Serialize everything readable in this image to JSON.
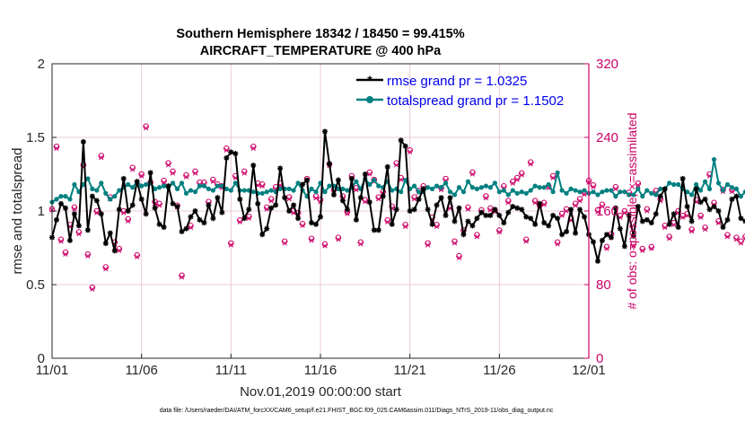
{
  "chart_data": {
    "type": "line",
    "title": [
      "Southern Hemisphere 18342 / 18450 = 99.415%",
      "AIRCRAFT_TEMPERATURE @ 400 hPa"
    ],
    "xlabel": "Nov.01,2019 00:00:00 start",
    "ylabel_left": "rmse and totalspread",
    "ylabel_right": "# of obs: o=possible; ×=assimilated",
    "xlim": [
      0,
      30
    ],
    "ylim_left": [
      0,
      2
    ],
    "ylim_right": [
      0,
      320
    ],
    "x_ticks": [
      0,
      5,
      10,
      15,
      20,
      25,
      30
    ],
    "x_tick_labels": [
      "11/01",
      "11/06",
      "11/11",
      "11/16",
      "11/21",
      "11/26",
      "12/01"
    ],
    "y_ticks_left": [
      0,
      0.5,
      1,
      1.5,
      2
    ],
    "y_tick_labels_left": [
      "0",
      "0.5",
      "1",
      "1.5",
      "2"
    ],
    "y_ticks_right": [
      0,
      80,
      160,
      240,
      320
    ],
    "y_tick_labels_right": [
      "0",
      "80",
      "160",
      "240",
      "320"
    ],
    "legend": [
      "rmse grand pr = 1.0325",
      "totalspread grand pr = 1.1502"
    ],
    "footnote": "data file: /Users/raeder/DAI/ATM_forcXX/CAM6_setup/f.e21.FHIST_BGC.f09_025.CAM6assim.011/Diags_NTrS_2019-11/obs_diag_output.nc",
    "colors": {
      "rmse": "#000000",
      "spread": "#008080",
      "obs": "#cc0066",
      "grid": "#e8c8dc"
    },
    "step_days": 0.25,
    "series": [
      {
        "name": "rmse",
        "axis": "left",
        "values": [
          0.82,
          0.94,
          1.05,
          1.02,
          0.8,
          0.98,
          0.9,
          1.47,
          0.87,
          1.1,
          1.07,
          0.98,
          0.78,
          0.85,
          0.73,
          1.01,
          1.22,
          1.0,
          1.04,
          1.2,
          1.08,
          0.98,
          1.26,
          1.02,
          0.91,
          0.89,
          1.17,
          1.05,
          1.03,
          0.86,
          0.88,
          0.96,
          1.0,
          0.94,
          0.92,
          1.04,
          0.95,
          1.09,
          0.99,
          1.36,
          1.4,
          1.39,
          1.08,
          0.95,
          1.01,
          1.31,
          1.05,
          0.84,
          0.88,
          1.02,
          1.04,
          1.29,
          1.09,
          1.0,
          1.04,
          0.95,
          1.18,
          1.21,
          0.92,
          0.91,
          0.96,
          1.54,
          1.32,
          1.11,
          1.21,
          1.07,
          1.01,
          1.22,
          0.94,
          1.09,
          1.25,
          1.06,
          0.87,
          0.87,
          1.1,
          1.3,
          0.91,
          1.01,
          1.48,
          1.44,
          1.0,
          1.01,
          1.08,
          1.15,
          1.01,
          0.91,
          1.04,
          1.09,
          0.97,
          1.09,
          0.93,
          1.02,
          0.84,
          0.93,
          0.9,
          0.95,
          0.99,
          0.97,
          0.97,
          1.01,
          0.97,
          0.92,
          0.99,
          1.03,
          1.02,
          1.01,
          0.96,
          0.95,
          0.91,
          1.05,
          0.92,
          0.9,
          0.97,
          0.95,
          0.84,
          0.86,
          1.01,
          0.85,
          1.01,
          0.96,
          0.84,
          0.79,
          0.66,
          0.8,
          0.84,
          0.82,
          1.02,
          0.88,
          0.76,
          0.97,
          0.83,
          1.03,
          0.93,
          0.94,
          0.92,
          0.98,
          1.1,
          1.15,
          0.91,
          0.98,
          0.89,
          1.22,
          1.03,
          0.93,
          1.15,
          1.06,
          1.08,
          1.01,
          1.03,
          1.0,
          0.89,
          0.94,
          1.08,
          1.1,
          0.95,
          0.93,
          1.1,
          0.94,
          0.83,
          0.94,
          1.05,
          0.89,
          0.94,
          1.03,
          0.86,
          0.81,
          0.82,
          0.93,
          0.81,
          0.83,
          0.86,
          0.98,
          0.88,
          0.93,
          1.34,
          1.32
        ]
      },
      {
        "name": "totalspread",
        "axis": "left",
        "values": [
          1.06,
          1.08,
          1.1,
          1.1,
          1.08,
          1.18,
          1.13,
          1.18,
          1.22,
          1.15,
          1.14,
          1.19,
          1.12,
          1.08,
          1.1,
          1.14,
          1.16,
          1.18,
          1.16,
          1.2,
          1.17,
          1.18,
          1.19,
          1.15,
          1.16,
          1.17,
          1.16,
          1.19,
          1.15,
          1.19,
          1.12,
          1.14,
          1.13,
          1.17,
          1.17,
          1.15,
          1.14,
          1.17,
          1.17,
          1.15,
          1.14,
          1.19,
          1.14,
          1.14,
          1.14,
          1.13,
          1.12,
          1.12,
          1.13,
          1.14,
          1.13,
          1.15,
          1.15,
          1.15,
          1.14,
          1.19,
          1.14,
          1.1,
          1.15,
          1.13,
          1.19,
          1.13,
          1.17,
          1.17,
          1.15,
          1.15,
          1.14,
          1.16,
          1.2,
          1.15,
          1.22,
          1.18,
          1.21,
          1.17,
          1.16,
          1.2,
          1.14,
          1.15,
          1.13,
          1.21,
          1.15,
          1.17,
          1.13,
          1.13,
          1.16,
          1.15,
          1.17,
          1.16,
          1.19,
          1.13,
          1.11,
          1.16,
          1.13,
          1.2,
          1.16,
          1.15,
          1.16,
          1.17,
          1.16,
          1.19,
          1.13,
          1.14,
          1.11,
          1.14,
          1.12,
          1.13,
          1.12,
          1.14,
          1.17,
          1.16,
          1.16,
          1.18,
          1.13,
          1.26,
          1.14,
          1.12,
          1.15,
          1.14,
          1.13,
          1.14,
          1.12,
          1.13,
          1.11,
          1.13,
          1.14,
          1.14,
          1.1,
          1.13,
          1.13,
          1.11,
          1.11,
          1.15,
          1.1,
          1.14,
          1.12,
          1.11,
          1.15,
          1.15,
          1.19,
          1.18,
          1.18,
          1.15,
          1.13,
          1.11,
          1.18,
          1.14,
          1.2,
          1.15,
          1.35,
          1.19,
          1.14,
          1.18,
          1.16,
          1.15,
          1.1,
          1.13,
          1.11,
          1.12,
          1.13,
          1.17,
          1.15,
          1.1,
          1.11,
          1.12,
          1.15,
          1.14,
          1.11,
          1.12,
          1.1,
          1.15,
          1.1,
          1.15,
          1.12,
          1.1,
          1.12,
          1.15,
          1.15,
          1.13
        ]
      },
      {
        "name": "obs_possible",
        "axis": "right",
        "values": [
          162,
          230,
          129,
          115,
          145,
          164,
          137,
          210,
          113,
          77,
          160,
          220,
          99,
          175,
          126,
          119,
          160,
          151,
          207,
          112,
          200,
          252,
          191,
          170,
          168,
          193,
          212,
          203,
          166,
          90,
          199,
          144,
          203,
          191,
          191,
          170,
          194,
          189,
          187,
          228,
          125,
          198,
          150,
          203,
          154,
          230,
          190,
          189,
          164,
          173,
          186,
          190,
          127,
          175,
          160,
          158,
          146,
          195,
          130,
          176,
          172,
          124,
          211,
          183,
          131,
          176,
          159,
          198,
          185,
          126,
          172,
          202,
          194,
          175,
          181,
          150,
          165,
          212,
          196,
          145,
          226,
          175,
          182,
          187,
          125,
          153,
          145,
          185,
          195,
          165,
          127,
          111,
          139,
          164,
          202,
          134,
          161,
          176,
          163,
          161,
          139,
          187,
          171,
          192,
          196,
          201,
          129,
          213,
          171,
          166,
          169,
          187,
          198,
          126,
          157,
          162,
          152,
          168,
          173,
          180,
          193,
          188,
          161,
          167,
          121,
          135,
          186,
          155,
          160,
          180,
          124,
          190,
          119,
          162,
          121,
          182,
          173,
          144,
          132,
          147,
          160,
          155,
          157,
          140,
          172,
          155,
          142,
          200,
          169,
          149,
          183,
          134,
          183,
          131,
          127,
          132,
          214,
          157,
          149,
          175,
          178,
          86,
          174,
          184,
          176,
          179,
          135,
          209,
          175,
          178,
          188,
          187,
          177,
          186,
          162,
          190,
          153,
          175,
          188,
          150
        ]
      },
      {
        "name": "obs_assimilated",
        "axis": "right",
        "values": [
          161,
          228,
          127,
          113,
          143,
          162,
          135,
          208,
          111,
          75,
          158,
          218,
          97,
          173,
          124,
          117,
          158,
          149,
          205,
          110,
          198,
          250,
          189,
          168,
          166,
          191,
          210,
          201,
          164,
          88,
          197,
          142,
          201,
          189,
          189,
          168,
          192,
          187,
          185,
          226,
          123,
          196,
          148,
          201,
          152,
          228,
          188,
          187,
          162,
          171,
          184,
          188,
          125,
          173,
          158,
          156,
          144,
          193,
          128,
          174,
          170,
          122,
          209,
          181,
          129,
          174,
          157,
          196,
          183,
          124,
          170,
          200,
          192,
          173,
          179,
          148,
          163,
          210,
          194,
          143,
          224,
          173,
          180,
          185,
          123,
          151,
          143,
          183,
          193,
          163,
          125,
          109,
          137,
          162,
          200,
          132,
          159,
          174,
          161,
          159,
          137,
          185,
          169,
          190,
          194,
          199,
          127,
          211,
          169,
          164,
          167,
          185,
          196,
          124,
          155,
          160,
          150,
          166,
          171,
          178,
          191,
          186,
          159,
          165,
          119,
          133,
          184,
          153,
          158,
          178,
          122,
          188,
          117,
          160,
          119,
          180,
          171,
          142,
          130,
          145,
          158,
          153,
          155,
          138,
          170,
          153,
          140,
          198,
          167,
          147,
          181,
          132,
          181,
          129,
          125,
          130,
          212,
          155,
          147,
          173,
          176,
          84,
          172,
          182,
          174,
          177,
          133,
          207,
          173,
          176,
          186,
          185,
          175,
          184,
          160,
          188,
          151,
          173,
          186,
          148
        ]
      }
    ]
  }
}
